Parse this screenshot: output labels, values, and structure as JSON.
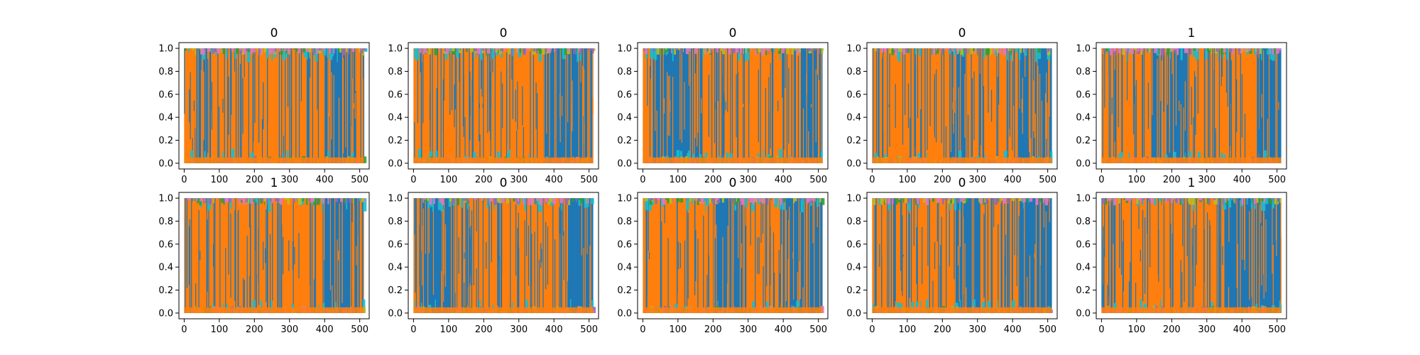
{
  "figure": {
    "background": "#ffffff"
  },
  "chart_data": {
    "type": "area",
    "layout": "grid 2 rows x 5 columns of subplots",
    "description": "Stacked per-position probability traces for several classes (values 0-1) across 512 positions; blue and orange dominate with contiguous blocks, thin traces of other colors near 0 and 1.",
    "x_ticks": [
      0,
      100,
      200,
      300,
      400,
      500
    ],
    "y_ticks": [
      "0.0",
      "0.2",
      "0.4",
      "0.6",
      "0.8",
      "1.0"
    ],
    "xlim": [
      -15,
      527
    ],
    "ylim": [
      -0.05,
      1.05
    ],
    "colors": {
      "blue": "#1f77b4",
      "orange": "#ff7f0e",
      "cyan": "#17becf",
      "green": "#2ca02c",
      "olive": "#bcbd22",
      "purple": "#9467bd",
      "pink": "#e377c2"
    },
    "panels": [
      {
        "title": "0",
        "orange_segments": [
          [
            0,
            30
          ],
          [
            60,
            400
          ],
          [
            490,
            512
          ]
        ]
      },
      {
        "title": "0",
        "orange_segments": [
          [
            0,
            370
          ]
        ]
      },
      {
        "title": "0",
        "orange_segments": [
          [
            0,
            30
          ],
          [
            170,
            450
          ]
        ]
      },
      {
        "title": "0",
        "orange_segments": [
          [
            0,
            220
          ],
          [
            270,
            415
          ]
        ]
      },
      {
        "title": "1",
        "orange_segments": [
          [
            0,
            140
          ],
          [
            250,
            450
          ]
        ]
      },
      {
        "title": "1",
        "orange_segments": [
          [
            0,
            400
          ]
        ]
      },
      {
        "title": "0",
        "orange_segments": [
          [
            0,
            20
          ],
          [
            125,
            440
          ]
        ]
      },
      {
        "title": "0",
        "orange_segments": [
          [
            0,
            200
          ],
          [
            295,
            400
          ]
        ]
      },
      {
        "title": "0",
        "orange_segments": [
          [
            0,
            235
          ],
          [
            310,
            420
          ]
        ]
      },
      {
        "title": "1",
        "orange_segments": [
          [
            0,
            350
          ]
        ]
      }
    ]
  }
}
